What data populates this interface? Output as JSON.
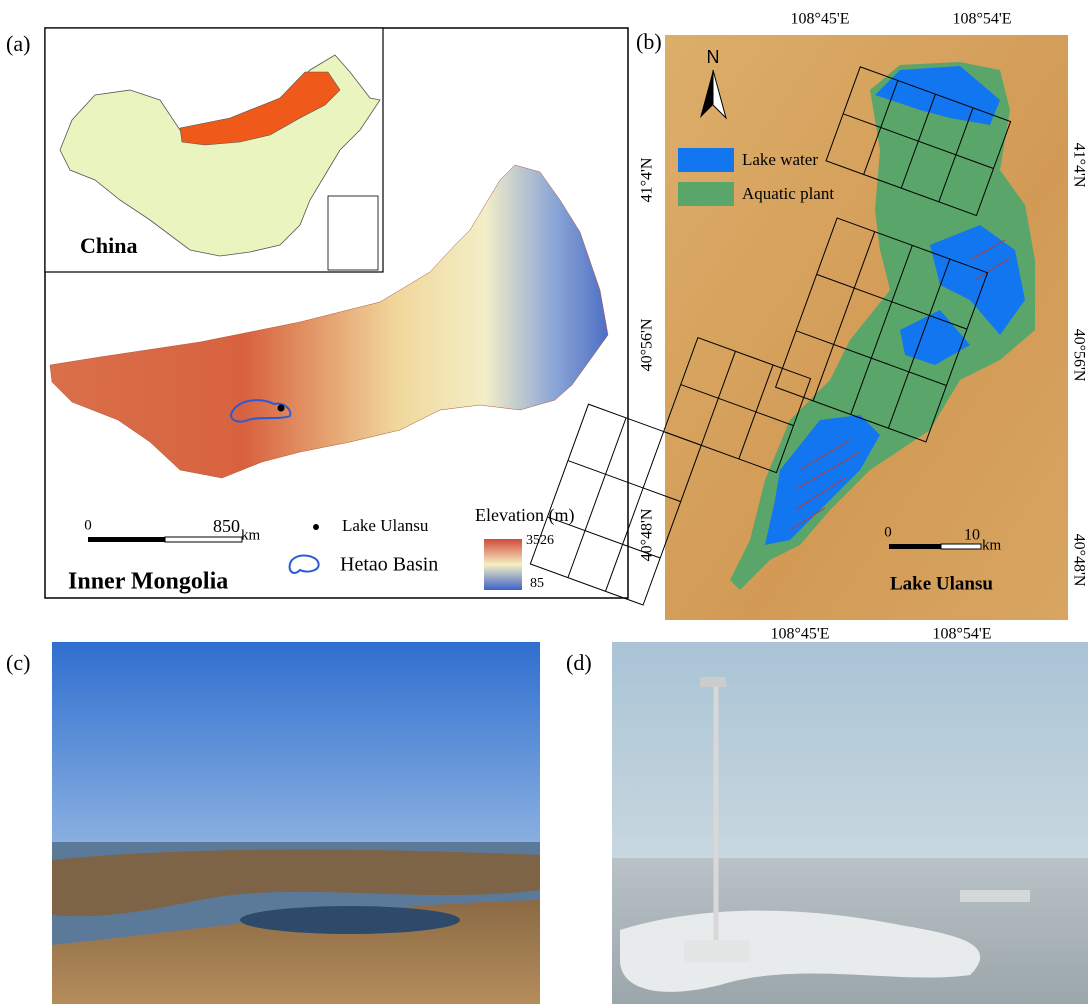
{
  "panel_a": {
    "label": "(a)",
    "inset_label": "China",
    "region_label": "Inner Mongolia",
    "scale_bar": {
      "start": "0",
      "end": "850",
      "unit": "km"
    },
    "legend": {
      "point": "Lake Ulansu",
      "outline": "Hetao Basin",
      "elevation_title": "Elevation (m)",
      "elevation_max": "3526",
      "elevation_min": "85"
    }
  },
  "panel_b": {
    "label": "(b)",
    "north": "N",
    "legend": {
      "water": "Lake water",
      "plant": "Aquatic plant"
    },
    "top_ticks": [
      "108°45'E",
      "108°54'E"
    ],
    "bottom_ticks": [
      "108°45'E",
      "108°54'E"
    ],
    "left_ticks": [
      "41°4'N",
      "40°56'N",
      "40°48'N"
    ],
    "right_ticks": [
      "41°4'N",
      "40°56'N",
      "40°48'N"
    ],
    "scale_bar": {
      "start": "0",
      "end": "10",
      "unit": "km"
    },
    "map_label": "Lake Ulansu"
  },
  "panel_c": {
    "label": "(c)"
  },
  "panel_d": {
    "label": "(d)"
  }
}
